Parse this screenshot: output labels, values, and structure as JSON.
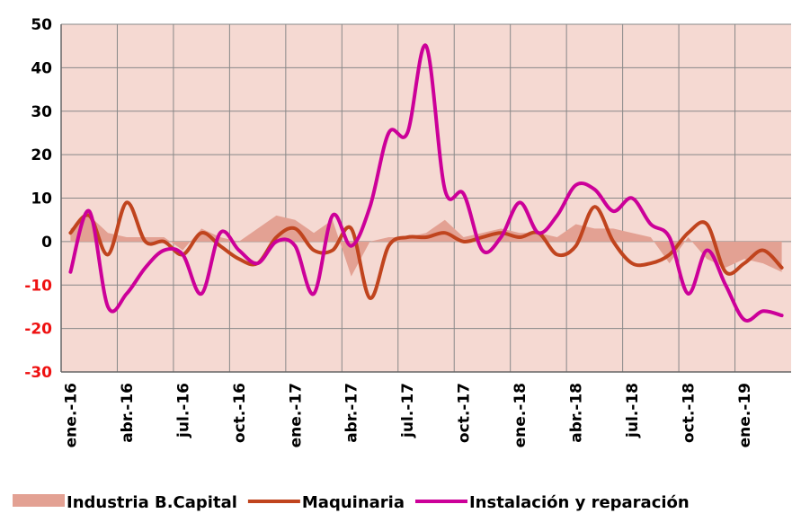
{
  "chart_data": {
    "type": "line",
    "categories": [
      "ene.-16",
      null,
      null,
      "abr.-16",
      null,
      null,
      "jul.-16",
      null,
      null,
      "oct.-16",
      null,
      null,
      "ene.-17",
      null,
      null,
      "abr.-17",
      null,
      null,
      "jul.-17",
      null,
      null,
      "oct.-17",
      null,
      null,
      "ene.-18",
      null,
      null,
      "abr.-18",
      null,
      null,
      "jul.-18",
      null,
      null,
      "oct.-18",
      null,
      null,
      "ene.-19",
      null,
      null
    ],
    "series": [
      {
        "name": "Industria B.Capital",
        "kind": "area",
        "color": "#e3a193",
        "values": [
          3,
          6,
          2,
          1,
          1,
          1,
          -2,
          3,
          1,
          0,
          3,
          6,
          5,
          2,
          5,
          -8,
          0,
          1,
          1,
          2,
          5,
          1,
          2,
          3,
          2,
          2,
          1,
          4,
          3,
          3,
          2,
          1,
          -5,
          1,
          -4,
          -6,
          -4,
          -5,
          -7
        ]
      },
      {
        "name": "Maquinaria",
        "kind": "line",
        "color": "#c0441e",
        "values": [
          2,
          6,
          -3,
          9,
          0,
          0,
          -3,
          2,
          -1,
          -4,
          -5,
          1,
          3,
          -2,
          -2,
          3,
          -13,
          -1,
          1,
          1,
          2,
          0,
          1,
          2,
          1,
          2,
          -3,
          -1,
          8,
          0,
          -5,
          -5,
          -3,
          2,
          4,
          -7,
          -5,
          -2,
          -6
        ]
      },
      {
        "name": "Instalación y reparación",
        "kind": "line",
        "color": "#cc0099",
        "values": [
          -7,
          7,
          -15,
          -12,
          -6,
          -2,
          -3,
          -12,
          2,
          -2,
          -5,
          0,
          -1,
          -12,
          6,
          -1,
          8,
          25,
          25,
          45,
          12,
          11,
          -2,
          1,
          9,
          2,
          6,
          13,
          12,
          7,
          10,
          4,
          1,
          -12,
          -2,
          -10,
          -18,
          -16,
          -17
        ]
      }
    ],
    "ylim": [
      -30,
      50
    ],
    "yticks": [
      -30,
      -20,
      -10,
      0,
      10,
      20,
      30,
      40,
      50
    ],
    "grid": true,
    "plot_background": "#f5d9d2",
    "negative_tick_color": "#ee1111",
    "legend": "bottom"
  }
}
